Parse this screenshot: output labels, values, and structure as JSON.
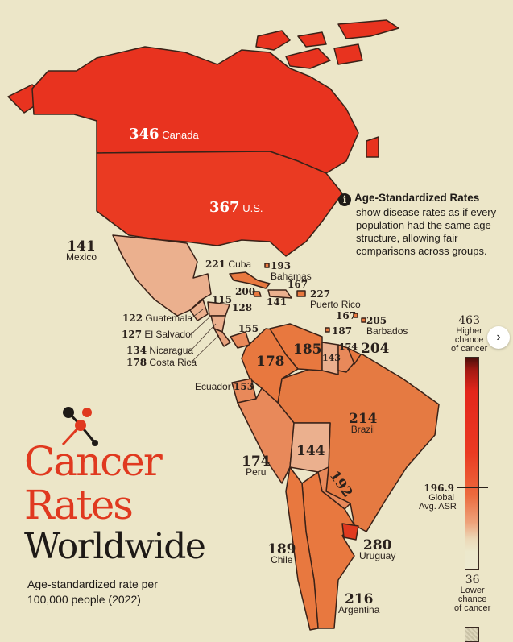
{
  "title": {
    "line1": "Cancer Rates",
    "line2": "Worldwide",
    "subtitle_line1": "Age-standardized rate per",
    "subtitle_line2": "100,000 people (2022)"
  },
  "info": {
    "icon": "info-icon",
    "heading": "Age-Standardized Rates",
    "body": "show disease rates as if every population had the same age structure, allowing fair comparisons across groups."
  },
  "legend": {
    "max_value": "463",
    "max_label_1": "Higher",
    "max_label_2": "chance",
    "max_label_3": "of cancer",
    "avg_value": "196.9",
    "avg_label_1": "Global",
    "avg_label_2": "Avg. ASR",
    "min_value": "36",
    "min_label_1": "Lower",
    "min_label_2": "chance",
    "min_label_3": "of cancer",
    "colors": {
      "high": "#4a0e0a",
      "mid": "#ea3a22",
      "low": "#ece9cf"
    }
  },
  "countries": {
    "canada": {
      "value": "346",
      "name": "Canada"
    },
    "us": {
      "value": "367",
      "name": "U.S."
    },
    "mexico": {
      "value": "141",
      "name": "Mexico"
    },
    "cuba": {
      "value": "221",
      "name": "Cuba"
    },
    "bahamas": {
      "value": "193",
      "name": "Bahamas"
    },
    "haiti_dr": {
      "value": "167"
    },
    "jamaica": {
      "value": "200"
    },
    "haiti": {
      "value": "141"
    },
    "puerto_rico": {
      "value": "227",
      "name": "Puerto Rico"
    },
    "small_island_1": {
      "value": "167"
    },
    "barbados": {
      "value": "205",
      "name": "Barbados"
    },
    "trinidad": {
      "value": "187"
    },
    "belize_honduras": {
      "value": "115"
    },
    "honduras": {
      "value": "128"
    },
    "guatemala": {
      "value": "122",
      "name": "Guatemala"
    },
    "el_salvador": {
      "value": "127",
      "name": "El Salvador"
    },
    "nicaragua": {
      "value": "134",
      "name": "Nicaragua"
    },
    "costa_rica": {
      "value": "178",
      "name": "Costa Rica"
    },
    "panama": {
      "value": "155"
    },
    "colombia": {
      "value": "178"
    },
    "venezuela": {
      "value": "185"
    },
    "guyana": {
      "value": "143"
    },
    "suriname": {
      "value": "174"
    },
    "french_guiana": {
      "value": "204"
    },
    "ecuador": {
      "value": "153",
      "name": "Ecuador"
    },
    "brazil": {
      "value": "214",
      "name": "Brazil"
    },
    "peru": {
      "value": "174",
      "name": "Peru"
    },
    "bolivia": {
      "value": "144"
    },
    "paraguay": {
      "value": "192"
    },
    "chile": {
      "value": "189",
      "name": "Chile"
    },
    "uruguay": {
      "value": "280",
      "name": "Uruguay"
    },
    "argentina": {
      "value": "216",
      "name": "Argentina"
    }
  },
  "nav": {
    "next_label": "›"
  }
}
